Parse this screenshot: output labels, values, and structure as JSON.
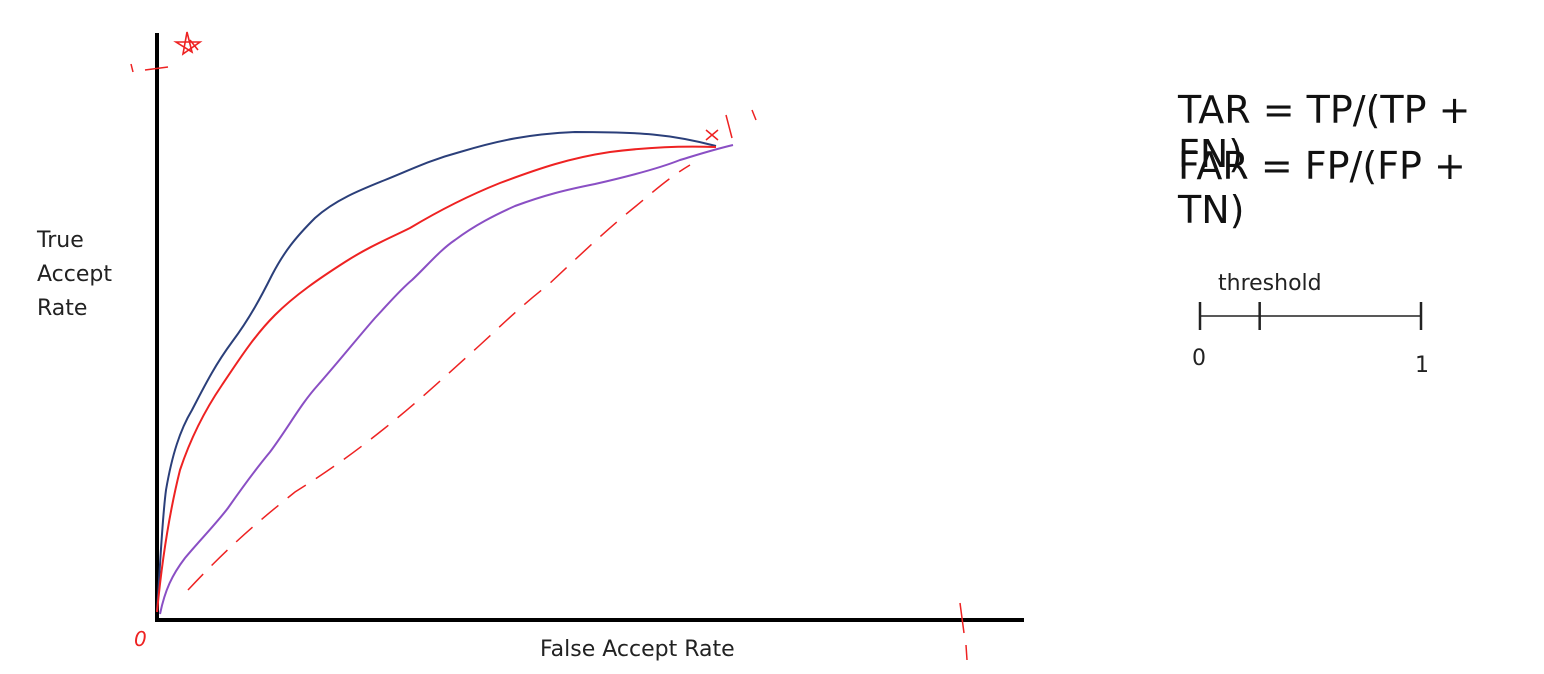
{
  "roc_sketch": {
    "y_axis_label": [
      "True",
      "Accept",
      "Rate"
    ],
    "x_axis_label": "False Accept Rate",
    "colors": {
      "axes": "#000000",
      "curve_best": "#2b3f7a",
      "curve_mid": "#ee2222",
      "curve_low": "#8a4fc4",
      "annotation": "#ee2222"
    },
    "annotations": {
      "origin": "0",
      "x_max": "1",
      "y_max": "1",
      "ideal_point_icon": "star-icon"
    }
  },
  "formulas": {
    "tar": "TAR = TP/(TP + FN)",
    "far": "FAR = FP/(FP + TN)"
  },
  "threshold": {
    "label": "threshold",
    "min": "0",
    "max": "1",
    "value": 0.27
  }
}
